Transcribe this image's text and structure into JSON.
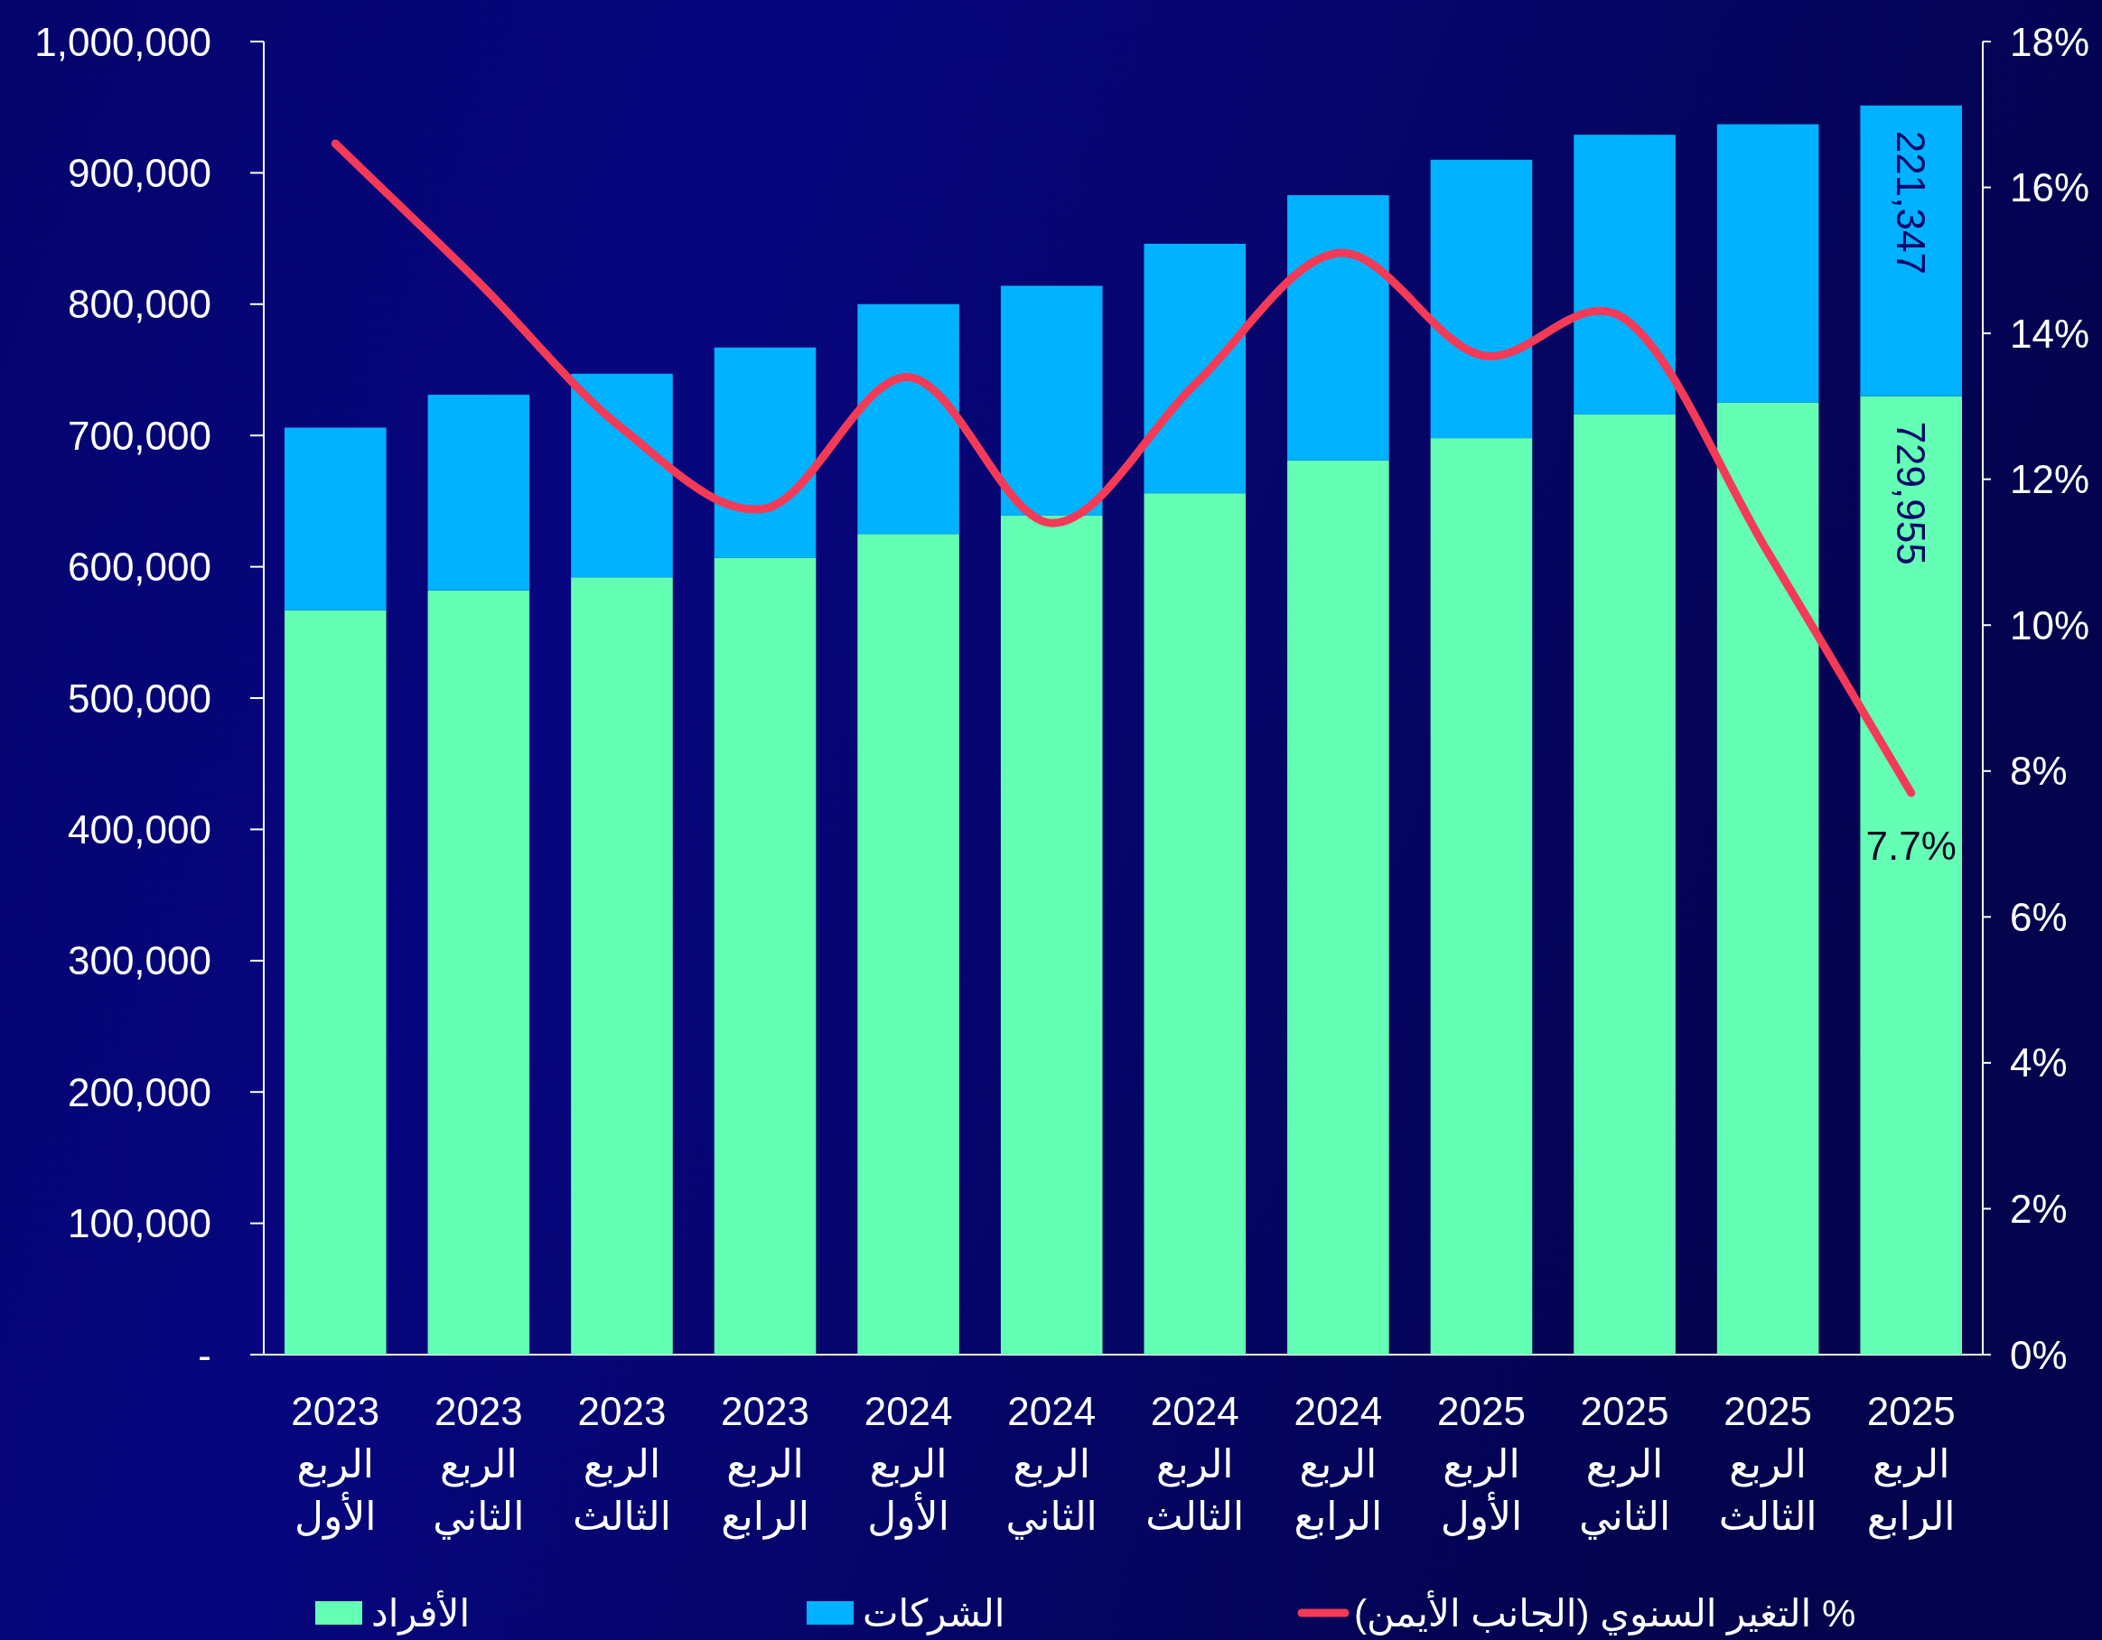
{
  "chart_data": {
    "type": "bar",
    "stacked": true,
    "categories": [
      "2023\nالربع\nالأول",
      "2023\nالربع\nالثاني",
      "2023\nالربع\nالثالث",
      "2023\nالربع\nالرابع",
      "2024\nالربع\nالأول",
      "2024\nالربع\nالثاني",
      "2024\nالربع\nالثالث",
      "2024\nالربع\nالرابع",
      "2025\nالربع\nالأول",
      "2025\nالربع\nالثاني",
      "2025\nالربع\nالثالث",
      "2025\nالربع\nالرابع"
    ],
    "series": [
      {
        "name": "الأفراد",
        "color": "#64ffb4",
        "values": [
          567000,
          582000,
          592000,
          607000,
          625000,
          639000,
          656000,
          681000,
          698000,
          716000,
          725000,
          729955
        ],
        "value_labels": [
          null,
          null,
          null,
          null,
          null,
          null,
          null,
          null,
          null,
          null,
          null,
          "729,955"
        ]
      },
      {
        "name": "الشركات",
        "color": "#00b2ff",
        "values": [
          139000,
          149000,
          155000,
          160000,
          175000,
          175000,
          190000,
          202000,
          212000,
          213000,
          212000,
          221347
        ],
        "value_labels": [
          null,
          null,
          null,
          null,
          null,
          null,
          null,
          null,
          null,
          null,
          null,
          "221,347"
        ]
      },
      {
        "name": "% التغير السنوي (الجانب الأيمن)",
        "type": "line",
        "axis": "y2",
        "color": "#f43a57",
        "values": [
          16.6,
          14.7,
          12.7,
          11.6,
          13.4,
          11.4,
          13.3,
          15.1,
          13.7,
          14.2,
          11.0,
          7.7
        ],
        "value_labels": [
          null,
          null,
          null,
          null,
          null,
          null,
          null,
          null,
          null,
          null,
          null,
          "7.7%"
        ]
      }
    ],
    "ylim": [
      0,
      1000000
    ],
    "yticks": [
      {
        "value": 0,
        "label": "-"
      },
      {
        "value": 100000,
        "label": "100,000"
      },
      {
        "value": 200000,
        "label": "200,000"
      },
      {
        "value": 300000,
        "label": "300,000"
      },
      {
        "value": 400000,
        "label": "400,000"
      },
      {
        "value": 500000,
        "label": "500,000"
      },
      {
        "value": 600000,
        "label": "600,000"
      },
      {
        "value": 700000,
        "label": "700,000"
      },
      {
        "value": 800000,
        "label": "800,000"
      },
      {
        "value": 900000,
        "label": "900,000"
      },
      {
        "value": 1000000,
        "label": "1,000,000"
      }
    ],
    "y2lim": [
      0,
      18
    ],
    "y2ticks": [
      {
        "value": 0,
        "label": "0%"
      },
      {
        "value": 2,
        "label": "2%"
      },
      {
        "value": 4,
        "label": "4%"
      },
      {
        "value": 6,
        "label": "6%"
      },
      {
        "value": 8,
        "label": "8%"
      },
      {
        "value": 10,
        "label": "10%"
      },
      {
        "value": 12,
        "label": "12%"
      },
      {
        "value": 14,
        "label": "14%"
      },
      {
        "value": 16,
        "label": "16%"
      },
      {
        "value": 18,
        "label": "18%"
      }
    ],
    "legend": "bottom"
  }
}
